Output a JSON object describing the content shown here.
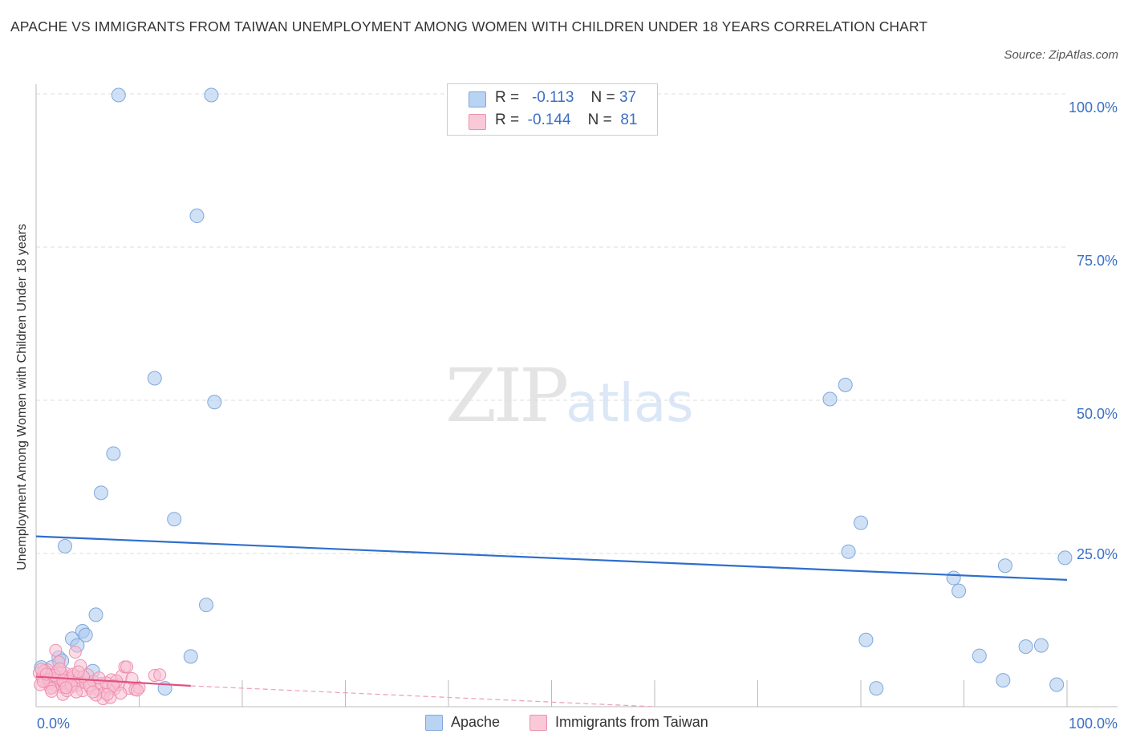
{
  "chart_data": {
    "type": "scatter",
    "title": "APACHE VS IMMIGRANTS FROM TAIWAN UNEMPLOYMENT AMONG WOMEN WITH CHILDREN UNDER 18 YEARS CORRELATION CHART",
    "source": "Source: ZipAtlas.com",
    "xlabel": "",
    "ylabel": "Unemployment Among Women with Children Under 18 years",
    "xlim": [
      0,
      100
    ],
    "ylim": [
      0,
      100
    ],
    "x_tick_labels": [
      "0.0%",
      "100.0%"
    ],
    "y_tick_labels": [
      "100.0%",
      "75.0%",
      "50.0%",
      "25.0%"
    ],
    "y_ticks": [
      100,
      75,
      50,
      25
    ],
    "grid": true,
    "legend_position": "top-center",
    "series": [
      {
        "name": "Apache",
        "color": "#a9c8ee",
        "stroke": "#7fa7dc",
        "line_color": "#2e6fcc",
        "R": "-0.113",
        "N": "37",
        "trend": {
          "x": [
            0,
            100
          ],
          "y": [
            27.8,
            20.7
          ]
        },
        "points": [
          [
            8,
            99.8
          ],
          [
            17,
            99.8
          ],
          [
            15.6,
            80.1
          ],
          [
            11.5,
            53.6
          ],
          [
            17.3,
            49.7
          ],
          [
            7.5,
            41.3
          ],
          [
            6.3,
            34.9
          ],
          [
            13.4,
            30.6
          ],
          [
            2.8,
            26.2
          ],
          [
            16.5,
            16.6
          ],
          [
            5.8,
            15
          ],
          [
            4.5,
            12.3
          ],
          [
            4.8,
            11.7
          ],
          [
            3.5,
            11.1
          ],
          [
            4,
            10
          ],
          [
            15,
            8.2
          ],
          [
            2.2,
            8
          ],
          [
            2.5,
            7.5
          ],
          [
            1.5,
            6.4
          ],
          [
            0.5,
            6.4
          ],
          [
            5.5,
            5.8
          ],
          [
            12.5,
            3
          ],
          [
            77,
            50.2
          ],
          [
            78.5,
            52.5
          ],
          [
            80,
            30
          ],
          [
            78.8,
            25.3
          ],
          [
            89,
            21
          ],
          [
            89.5,
            18.9
          ],
          [
            94,
            23
          ],
          [
            99.8,
            24.3
          ],
          [
            80.5,
            10.9
          ],
          [
            96,
            9.8
          ],
          [
            97.5,
            10
          ],
          [
            91.5,
            8.3
          ],
          [
            81.5,
            3
          ],
          [
            93.8,
            4.3
          ],
          [
            99,
            3.6
          ]
        ]
      },
      {
        "name": "Immigrants from Taiwan",
        "color": "#f7bfd1",
        "stroke": "#ee8fb0",
        "line_color": "#e05082",
        "R": "-0.144",
        "N": "81",
        "trend": {
          "x": [
            0,
            15
          ],
          "y": [
            4.9,
            3.4
          ]
        },
        "trend_ext": {
          "x": [
            15,
            60
          ],
          "y": [
            3.4,
            -1.1
          ]
        },
        "points": [
          [
            0.3,
            5.5
          ],
          [
            0.6,
            4.8
          ],
          [
            0.9,
            4.2
          ],
          [
            1.1,
            6
          ],
          [
            1.3,
            3.8
          ],
          [
            1.5,
            5.2
          ],
          [
            1.7,
            4.5
          ],
          [
            1.9,
            3.5
          ],
          [
            2.1,
            5.8
          ],
          [
            2.3,
            4.1
          ],
          [
            2.5,
            3.2
          ],
          [
            2.7,
            4.9
          ],
          [
            2.9,
            5.4
          ],
          [
            3.1,
            3.9
          ],
          [
            3.3,
            4.6
          ],
          [
            3.5,
            3.3
          ],
          [
            3.7,
            5
          ],
          [
            3.9,
            4.3
          ],
          [
            0.4,
            3.6
          ],
          [
            0.8,
            5.9
          ],
          [
            1.2,
            4.4
          ],
          [
            1.6,
            3.1
          ],
          [
            2,
            4.7
          ],
          [
            2.4,
            5.6
          ],
          [
            2.8,
            3.7
          ],
          [
            3.2,
            4.2
          ],
          [
            3.6,
            5.3
          ],
          [
            4,
            3.5
          ],
          [
            4.2,
            4.8
          ],
          [
            4.5,
            2.6
          ],
          [
            4.8,
            3.9
          ],
          [
            5,
            5.2
          ],
          [
            5.3,
            3
          ],
          [
            5.6,
            4.1
          ],
          [
            6,
            2.8
          ],
          [
            6.3,
            3.8
          ],
          [
            6.6,
            2.3
          ],
          [
            7,
            3.2
          ],
          [
            7.3,
            4.4
          ],
          [
            7.6,
            2.9
          ],
          [
            8,
            3.6
          ],
          [
            8.3,
            5
          ],
          [
            8.6,
            6.5
          ],
          [
            9,
            3
          ],
          [
            9.3,
            4.6
          ],
          [
            9.6,
            2.8
          ],
          [
            10,
            3.1
          ],
          [
            11.5,
            5.1
          ],
          [
            12,
            5.2
          ],
          [
            8.8,
            6.5
          ],
          [
            4.3,
            6.7
          ],
          [
            3.8,
            8.9
          ],
          [
            1.9,
            9.2
          ],
          [
            2.2,
            7.3
          ],
          [
            6.5,
            1.3
          ],
          [
            5.8,
            1.9
          ],
          [
            2.6,
            2
          ],
          [
            7.2,
            1.5
          ],
          [
            3,
            2.6
          ],
          [
            1.4,
            3
          ],
          [
            0.7,
            4.1
          ],
          [
            1.8,
            5.1
          ],
          [
            2.6,
            4.3
          ],
          [
            3.4,
            3.6
          ],
          [
            4.6,
            4.9
          ],
          [
            5.2,
            3.4
          ],
          [
            6.8,
            3.9
          ],
          [
            7.8,
            4.2
          ],
          [
            9.8,
            2.7
          ],
          [
            0.5,
            6.1
          ],
          [
            1,
            5.3
          ],
          [
            2.3,
            6.2
          ],
          [
            4.1,
            5.7
          ],
          [
            5.5,
            2.4
          ],
          [
            6.1,
            4.7
          ],
          [
            7.5,
            3.4
          ],
          [
            8.2,
            2.2
          ],
          [
            3.9,
            2.4
          ],
          [
            1.5,
            2.5
          ],
          [
            2.9,
            3.1
          ],
          [
            6.9,
            2
          ]
        ]
      }
    ]
  },
  "legend": {
    "r_label": "R =",
    "n_label": "N =",
    "apache_r": "-0.113",
    "apache_n": "37",
    "taiwan_r": "-0.144",
    "taiwan_n": "81"
  },
  "bottom_legend": {
    "apache": "Apache",
    "taiwan": "Immigrants from Taiwan"
  },
  "watermark": {
    "zip": "ZIP",
    "atlas": "atlas"
  }
}
